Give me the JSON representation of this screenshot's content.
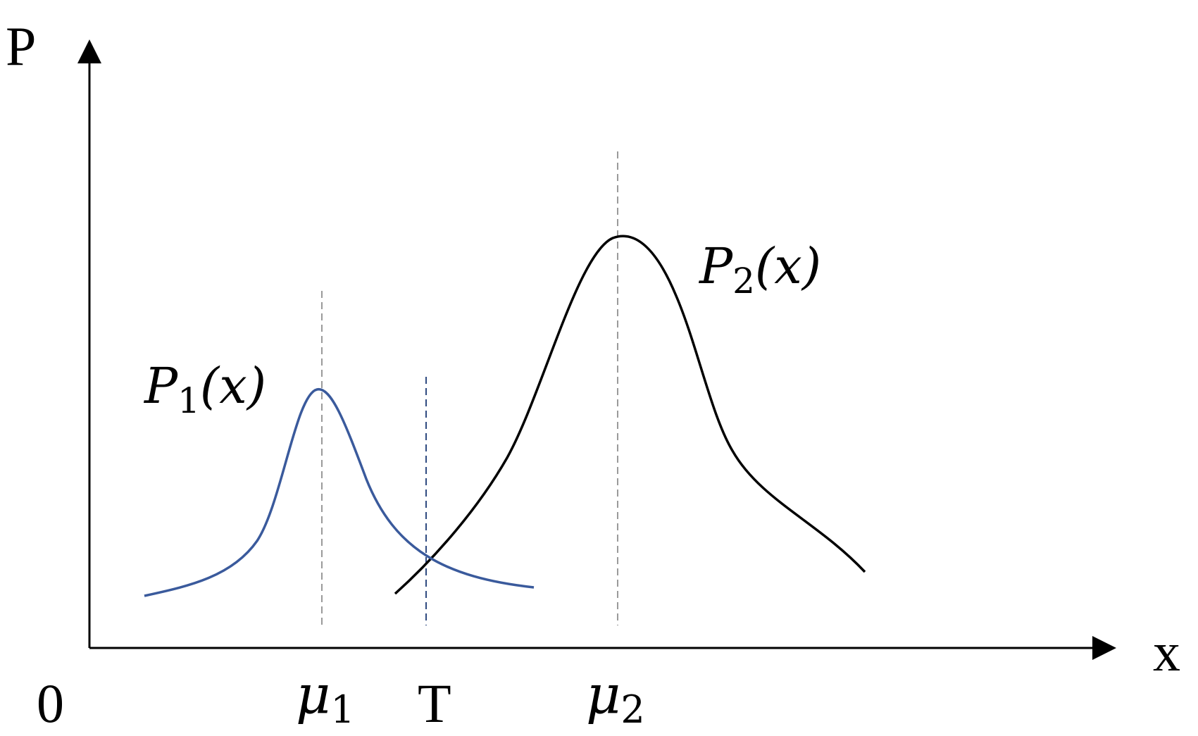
{
  "colors": {
    "axis": "#000000",
    "curve_p1": "#3a5a9c",
    "curve_p2": "#000000",
    "guide_mu": "#9a9a9a",
    "guide_t": "#2f4a80"
  },
  "axes": {
    "y_label": "P",
    "x_label": "x",
    "origin_label": "0"
  },
  "curves": {
    "p1": {
      "name": "P",
      "sub": "1",
      "arg": "(x)"
    },
    "p2": {
      "name": "P",
      "sub": "2",
      "arg": "(x)"
    }
  },
  "ticks": {
    "mu1": {
      "name": "μ",
      "sub": "1"
    },
    "threshold": "T",
    "mu2": {
      "name": "μ",
      "sub": "2"
    }
  }
}
